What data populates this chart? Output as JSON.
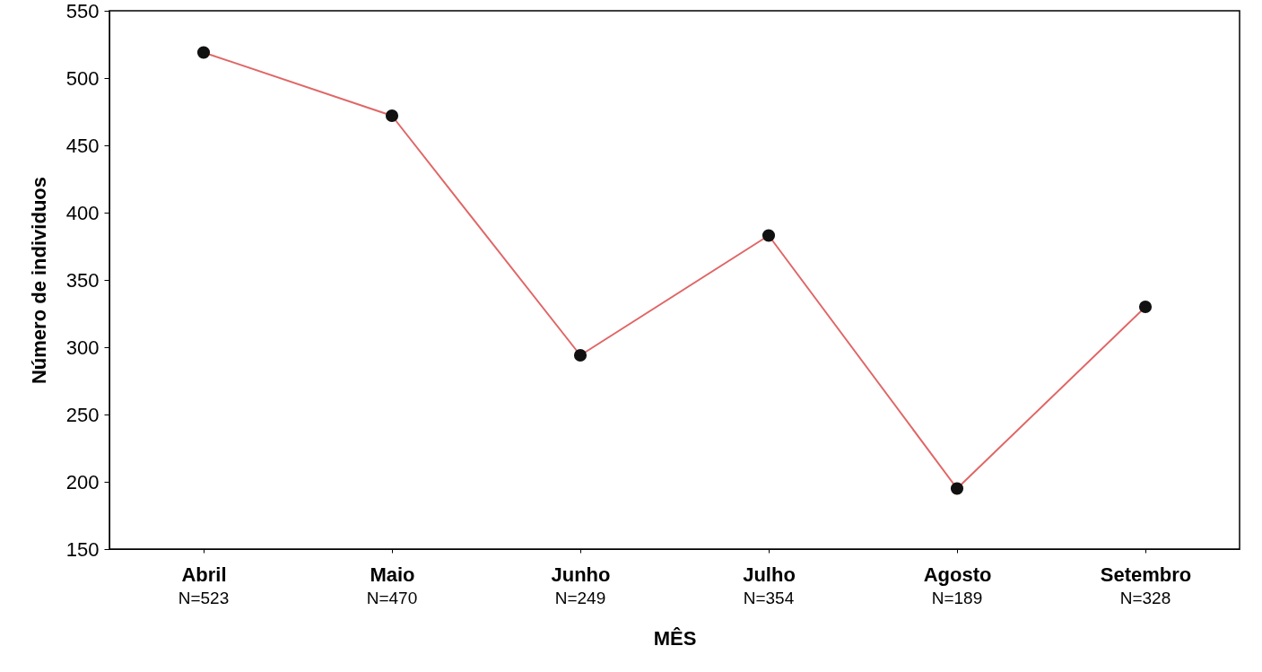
{
  "chart_data": {
    "type": "line",
    "categories": [
      "Abril",
      "Maio",
      "Junho",
      "Julho",
      "Agosto",
      "Setembro"
    ],
    "series": [
      {
        "color": "#e06666",
        "values": [
          519,
          472,
          294,
          383,
          195,
          330
        ]
      }
    ],
    "xlabel": "MÊS",
    "ylabel": "Número de individuos",
    "ylim": [
      150,
      550
    ],
    "yticks": [
      150,
      200,
      250,
      300,
      350,
      400,
      450,
      500,
      550
    ],
    "marker": "circle",
    "line_style": "solid",
    "grid": false,
    "annotations": [
      "N=523",
      "N=470",
      "N=249",
      "N=354",
      "N=189",
      "N=328"
    ]
  }
}
